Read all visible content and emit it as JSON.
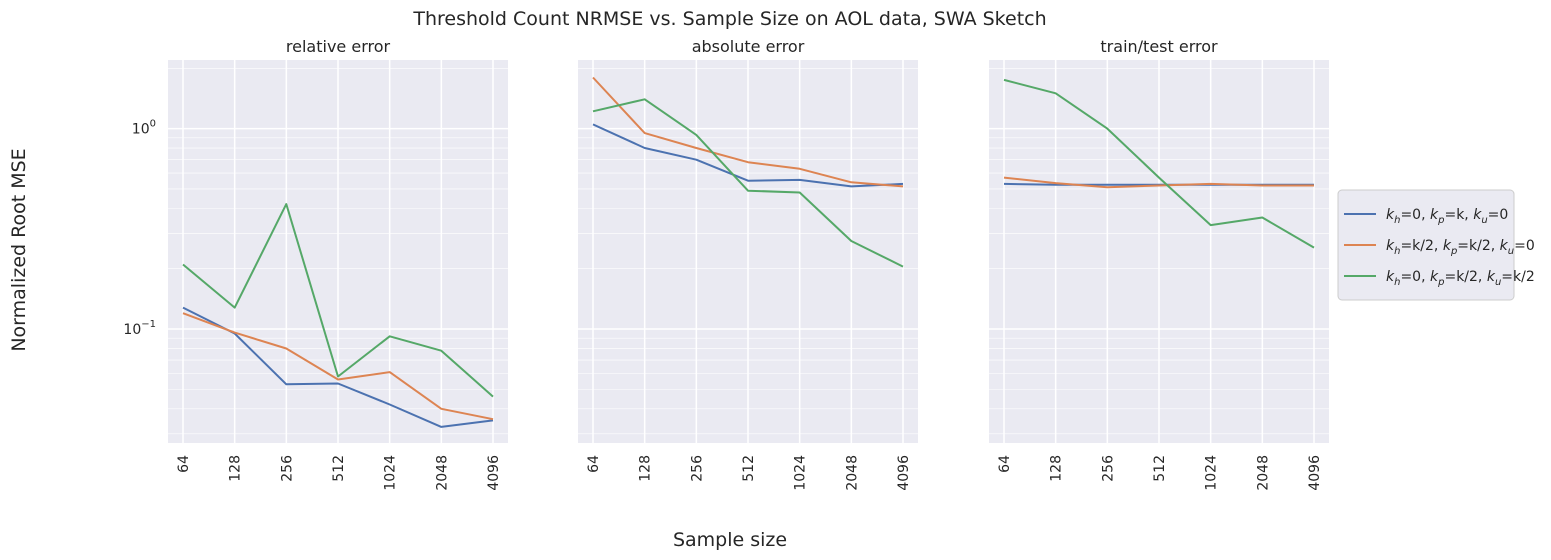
{
  "chart_data": {
    "type": "line",
    "title": "Threshold Count NRMSE vs. Sample Size on AOL data, SWA Sketch",
    "xlabel": "Sample size",
    "ylabel": "Normalized Root MSE",
    "yscale": "log",
    "ylim": [
      0.027,
      2.2
    ],
    "y_ticks": [
      {
        "value": 1,
        "base": "10",
        "exp": "0"
      },
      {
        "value": 0.1,
        "base": "10",
        "exp": "−1"
      }
    ],
    "categories": [
      "64",
      "128",
      "256",
      "512",
      "1024",
      "2048",
      "4096"
    ],
    "grid": true,
    "legend_position": "right",
    "legend": [
      {
        "color": "#4c72b0",
        "parts": [
          [
            "k",
            "h",
            "=0, "
          ],
          [
            "k",
            "p",
            "=k, "
          ],
          [
            "k",
            "u",
            "=0"
          ]
        ]
      },
      {
        "color": "#dd8452",
        "parts": [
          [
            "k",
            "h",
            "=k/2, "
          ],
          [
            "k",
            "p",
            "=k/2, "
          ],
          [
            "k",
            "u",
            "=0"
          ]
        ]
      },
      {
        "color": "#55a868",
        "parts": [
          [
            "k",
            "h",
            "=0, "
          ],
          [
            "k",
            "p",
            "=k/2, "
          ],
          [
            "k",
            "u",
            "=k/2"
          ]
        ]
      }
    ],
    "panels": [
      {
        "title": "relative error",
        "series": [
          {
            "color": "#4c72b0",
            "values": [
              0.128,
              0.095,
              0.053,
              0.0535,
              0.042,
              0.0325,
              0.035
            ]
          },
          {
            "color": "#dd8452",
            "values": [
              0.12,
              0.096,
              0.08,
              0.056,
              0.061,
              0.04,
              0.0355
            ]
          },
          {
            "color": "#55a868",
            "values": [
              0.21,
              0.128,
              0.42,
              0.058,
              0.092,
              0.078,
              0.046
            ]
          }
        ]
      },
      {
        "title": "absolute error",
        "series": [
          {
            "color": "#4c72b0",
            "values": [
              1.05,
              0.8,
              0.7,
              0.55,
              0.555,
              0.515,
              0.53
            ]
          },
          {
            "color": "#dd8452",
            "values": [
              1.8,
              0.95,
              0.8,
              0.68,
              0.63,
              0.54,
              0.515
            ]
          },
          {
            "color": "#55a868",
            "values": [
              1.22,
              1.4,
              0.93,
              0.49,
              0.48,
              0.275,
              0.205
            ]
          }
        ]
      },
      {
        "title": "train/test error",
        "series": [
          {
            "color": "#4c72b0",
            "values": [
              0.53,
              0.525,
              0.525,
              0.525,
              0.525,
              0.525,
              0.525
            ]
          },
          {
            "color": "#dd8452",
            "values": [
              0.57,
              0.535,
              0.51,
              0.52,
              0.53,
              0.52,
              0.52
            ]
          },
          {
            "color": "#55a868",
            "values": [
              1.75,
              1.5,
              1.0,
              0.57,
              0.33,
              0.36,
              0.255
            ]
          }
        ]
      }
    ]
  }
}
